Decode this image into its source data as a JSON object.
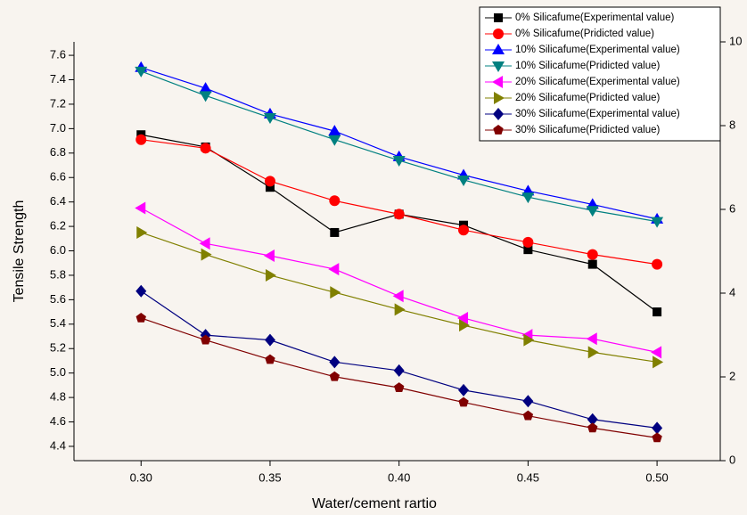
{
  "chart_data": {
    "type": "line",
    "xlabel": "Water/cement rartio",
    "ylabel": "Tensile Strength",
    "x": [
      0.3,
      0.325,
      0.35,
      0.375,
      0.4,
      0.425,
      0.45,
      0.475,
      0.5
    ],
    "xlim": [
      0.274,
      0.5245
    ],
    "xticks": [
      {
        "value": 0.3,
        "label": "0.30"
      },
      0.35,
      {
        "value": 0.4,
        "label": "0.40"
      },
      0.45,
      {
        "value": 0.5,
        "label": "0.50"
      }
    ],
    "ylim": [
      4.283,
      7.71
    ],
    "yticks": [
      4.4,
      4.6,
      4.8,
      {
        "value": 5.0,
        "label": "5.0"
      },
      5.2,
      5.4,
      5.6,
      5.8,
      {
        "value": 6.0,
        "label": "6.0"
      },
      6.2,
      6.4,
      6.6,
      6.8,
      {
        "value": 7.0,
        "label": "7.0"
      },
      7.2,
      7.4,
      7.6
    ],
    "y2lim": [
      0,
      10
    ],
    "y2ticks": [
      0,
      2,
      4,
      6,
      8,
      10
    ],
    "legend": "top-right",
    "series": [
      {
        "name": "0% Silicafume(Experimental value)",
        "color": "#000000",
        "marker": "square",
        "values": [
          6.95,
          6.85,
          6.52,
          6.15,
          6.3,
          6.21,
          6.01,
          5.89,
          5.5
        ]
      },
      {
        "name": "0% Silicafume(Pridicted value)",
        "color": "#ff0000",
        "marker": "circle",
        "values": [
          6.91,
          6.84,
          6.57,
          6.41,
          6.3,
          6.17,
          6.07,
          5.97,
          5.89
        ]
      },
      {
        "name": "10% Silicafume(Experimental value)",
        "color": "#0000ff",
        "marker": "triangle-up",
        "values": [
          7.5,
          7.33,
          7.12,
          6.98,
          6.77,
          6.62,
          6.49,
          6.38,
          6.26
        ]
      },
      {
        "name": "10% Silicafume(Pridicted value)",
        "color": "#008080",
        "marker": "triangle-down",
        "values": [
          7.47,
          7.27,
          7.09,
          6.91,
          6.74,
          6.58,
          6.44,
          6.33,
          6.24
        ]
      },
      {
        "name": "20% Silicafume(Experimental value)",
        "color": "#ff00ff",
        "marker": "triangle-left",
        "values": [
          6.35,
          6.06,
          5.96,
          5.85,
          5.63,
          5.45,
          5.31,
          5.28,
          5.17
        ]
      },
      {
        "name": "20% Silicafume(Pridicted  value)",
        "color": "#808000",
        "marker": "triangle-right",
        "values": [
          6.15,
          5.97,
          5.8,
          5.66,
          5.52,
          5.39,
          5.27,
          5.17,
          5.09
        ]
      },
      {
        "name": "30% Silicafume(Experimental value)",
        "color": "#000080",
        "marker": "diamond",
        "values": [
          5.67,
          5.31,
          5.27,
          5.09,
          5.02,
          4.86,
          4.77,
          4.62,
          4.55
        ]
      },
      {
        "name": "30% Silicafume(Pridicted value)",
        "color": "#800000",
        "marker": "pentagon",
        "values": [
          5.45,
          5.27,
          5.11,
          4.97,
          4.88,
          4.76,
          4.65,
          4.55,
          4.47
        ]
      }
    ]
  }
}
